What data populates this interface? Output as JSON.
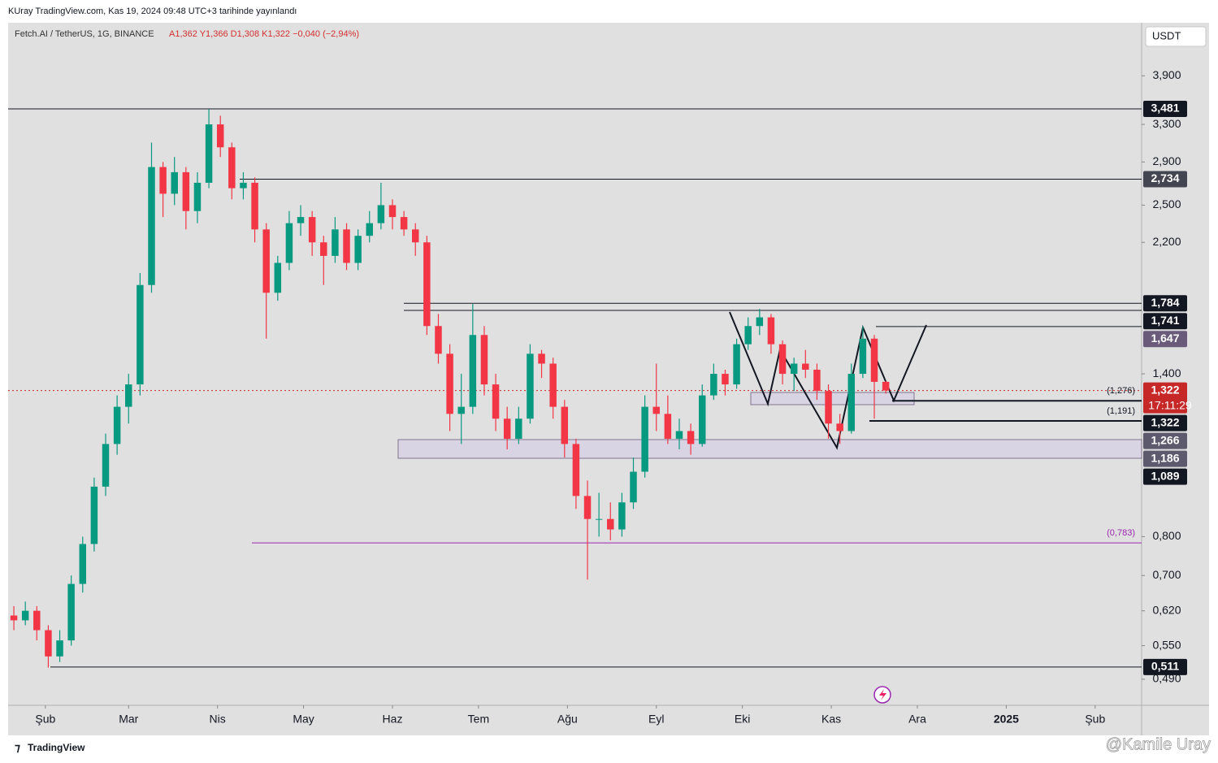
{
  "header": {
    "published": "KUray TradingView.com, Kas 19, 2024 09:48 UTC+3 tarihinde yayınlandı",
    "symbol": "Fetch.AI / TetherUS, 1G, BINANCE",
    "ohlc": "A1,362  Y1,366  D1,308  K1,322  −0,040 (−2,94%)",
    "currency": "USDT"
  },
  "footer": {
    "brand": "TradingView",
    "watermark": "@Kamile Uray"
  },
  "chart_data": {
    "type": "candlestick",
    "log_scale": true,
    "up_color": "#089981",
    "down_color": "#f23645",
    "xlim": [
      0,
      98.8
    ],
    "ylim": [
      0.448,
      4.68
    ],
    "xticks": [
      {
        "value": 3.25,
        "label": "Şub"
      },
      {
        "value": 10.5,
        "label": "Mar"
      },
      {
        "value": 18.25,
        "label": "Nis"
      },
      {
        "value": 25.75,
        "label": "May"
      },
      {
        "value": 33.5,
        "label": "Haz"
      },
      {
        "value": 41,
        "label": "Tem"
      },
      {
        "value": 48.75,
        "label": "Ağu"
      },
      {
        "value": 56.5,
        "label": "Eyl"
      },
      {
        "value": 64,
        "label": "Eki"
      },
      {
        "value": 71.75,
        "label": "Kas"
      },
      {
        "value": 79.25,
        "label": "Ara"
      },
      {
        "value": 87,
        "label": "2025"
      },
      {
        "value": 94.75,
        "label": "Şub"
      }
    ],
    "yticks": [
      {
        "value": 3.9,
        "label": "3,900"
      },
      {
        "value": 3.3,
        "label": "3,300"
      },
      {
        "value": 2.9,
        "label": "2,900"
      },
      {
        "value": 2.5,
        "label": "2,500"
      },
      {
        "value": 2.2,
        "label": "2,200"
      },
      {
        "value": 1.4,
        "label": "1,400"
      },
      {
        "value": 0.8,
        "label": "0,800"
      },
      {
        "value": 0.7,
        "label": "0,700"
      },
      {
        "value": 0.62,
        "label": "0,620"
      },
      {
        "value": 0.55,
        "label": "0,550"
      },
      {
        "value": 0.49,
        "label": "0,490"
      }
    ],
    "candles": [
      [
        0.61,
        0.63,
        0.58,
        0.6
      ],
      [
        0.6,
        0.64,
        0.59,
        0.62
      ],
      [
        0.62,
        0.63,
        0.56,
        0.58
      ],
      [
        0.58,
        0.59,
        0.51,
        0.53
      ],
      [
        0.53,
        0.58,
        0.52,
        0.56
      ],
      [
        0.56,
        0.7,
        0.55,
        0.68
      ],
      [
        0.68,
        0.8,
        0.66,
        0.78
      ],
      [
        0.78,
        0.98,
        0.76,
        0.95
      ],
      [
        0.95,
        1.14,
        0.92,
        1.1
      ],
      [
        1.1,
        1.3,
        1.06,
        1.25
      ],
      [
        1.25,
        1.4,
        1.18,
        1.35
      ],
      [
        1.35,
        1.98,
        1.3,
        1.9
      ],
      [
        1.9,
        3.1,
        1.85,
        2.85
      ],
      [
        2.85,
        2.9,
        2.4,
        2.6
      ],
      [
        2.6,
        2.95,
        2.5,
        2.8
      ],
      [
        2.8,
        2.85,
        2.3,
        2.45
      ],
      [
        2.45,
        2.8,
        2.35,
        2.7
      ],
      [
        2.7,
        3.48,
        2.65,
        3.3
      ],
      [
        3.3,
        3.4,
        2.95,
        3.05
      ],
      [
        3.05,
        3.1,
        2.55,
        2.65
      ],
      [
        2.65,
        2.8,
        2.55,
        2.7
      ],
      [
        2.7,
        2.75,
        2.2,
        2.3
      ],
      [
        2.3,
        2.35,
        1.58,
        1.85
      ],
      [
        1.85,
        2.1,
        1.8,
        2.05
      ],
      [
        2.05,
        2.45,
        2.0,
        2.35
      ],
      [
        2.35,
        2.5,
        2.25,
        2.4
      ],
      [
        2.4,
        2.45,
        2.1,
        2.2
      ],
      [
        2.2,
        2.25,
        1.9,
        2.1
      ],
      [
        2.1,
        2.4,
        2.05,
        2.3
      ],
      [
        2.3,
        2.35,
        2.0,
        2.05
      ],
      [
        2.05,
        2.3,
        2.0,
        2.25
      ],
      [
        2.25,
        2.45,
        2.2,
        2.35
      ],
      [
        2.35,
        2.7,
        2.3,
        2.5
      ],
      [
        2.5,
        2.55,
        2.3,
        2.4
      ],
      [
        2.4,
        2.45,
        2.25,
        2.3
      ],
      [
        2.3,
        2.35,
        2.1,
        2.2
      ],
      [
        2.2,
        2.25,
        1.6,
        1.65
      ],
      [
        1.65,
        1.72,
        1.45,
        1.5
      ],
      [
        1.5,
        1.55,
        1.15,
        1.22
      ],
      [
        1.22,
        1.4,
        1.1,
        1.25
      ],
      [
        1.25,
        1.78,
        1.22,
        1.6
      ],
      [
        1.6,
        1.65,
        1.3,
        1.35
      ],
      [
        1.35,
        1.4,
        1.15,
        1.2
      ],
      [
        1.2,
        1.25,
        1.08,
        1.12
      ],
      [
        1.12,
        1.25,
        1.1,
        1.2
      ],
      [
        1.2,
        1.55,
        1.18,
        1.5
      ],
      [
        1.5,
        1.52,
        1.38,
        1.45
      ],
      [
        1.45,
        1.48,
        1.2,
        1.25
      ],
      [
        1.25,
        1.28,
        1.05,
        1.1
      ],
      [
        1.1,
        1.12,
        0.88,
        0.92
      ],
      [
        0.92,
        0.97,
        0.69,
        0.85
      ],
      [
        0.85,
        0.93,
        0.8,
        0.85
      ],
      [
        0.85,
        0.9,
        0.79,
        0.82
      ],
      [
        0.82,
        0.93,
        0.8,
        0.9
      ],
      [
        0.9,
        1.05,
        0.88,
        1.0
      ],
      [
        1.0,
        1.3,
        0.98,
        1.25
      ],
      [
        1.25,
        1.45,
        1.15,
        1.22
      ],
      [
        1.22,
        1.3,
        1.1,
        1.12
      ],
      [
        1.12,
        1.2,
        1.08,
        1.15
      ],
      [
        1.15,
        1.18,
        1.06,
        1.1
      ],
      [
        1.1,
        1.35,
        1.09,
        1.3
      ],
      [
        1.3,
        1.45,
        1.28,
        1.4
      ],
      [
        1.4,
        1.42,
        1.3,
        1.35
      ],
      [
        1.35,
        1.58,
        1.33,
        1.55
      ],
      [
        1.55,
        1.7,
        1.52,
        1.65
      ],
      [
        1.65,
        1.75,
        1.6,
        1.7
      ],
      [
        1.7,
        1.72,
        1.5,
        1.55
      ],
      [
        1.55,
        1.57,
        1.35,
        1.4
      ],
      [
        1.4,
        1.48,
        1.32,
        1.45
      ],
      [
        1.45,
        1.52,
        1.38,
        1.42
      ],
      [
        1.42,
        1.45,
        1.28,
        1.32
      ],
      [
        1.32,
        1.35,
        1.12,
        1.18
      ],
      [
        1.18,
        1.22,
        1.1,
        1.15
      ],
      [
        1.15,
        1.45,
        1.14,
        1.4
      ],
      [
        1.4,
        1.65,
        1.38,
        1.58
      ],
      [
        1.58,
        1.6,
        1.2,
        1.362
      ],
      [
        1.362,
        1.366,
        1.308,
        1.322
      ]
    ],
    "price_labels": [
      {
        "value": 3.481,
        "label": "3,481",
        "color": "#131722"
      },
      {
        "value": 2.734,
        "label": "2,734",
        "color": "#434651"
      },
      {
        "value": 1.784,
        "label": "1,784",
        "color": "#131722"
      },
      {
        "value": 1.741,
        "label": "1,741",
        "color": "#131722"
      },
      {
        "value": 1.647,
        "label": "1,647",
        "color": "#6b5b7b"
      },
      {
        "value": 1.322,
        "label": "1,322",
        "color": "#c62828",
        "countdown": "17:11:29"
      },
      {
        "value": 1.322,
        "label": "1,322",
        "color": "#131722"
      },
      {
        "value": 1.266,
        "label": "1,266",
        "color": "#5e5a6e"
      },
      {
        "value": 1.186,
        "label": "1,186",
        "color": "#5e5a6e"
      },
      {
        "value": 1.089,
        "label": "1,089",
        "color": "#131722"
      },
      {
        "value": 0.511,
        "label": "0,511",
        "color": "#131722"
      }
    ],
    "level_notes": [
      {
        "value": 1.276,
        "label": "(1,276)",
        "color": "#131722"
      },
      {
        "value": 1.191,
        "label": "(1,191)",
        "color": "#131722"
      },
      {
        "value": 0.783,
        "label": "(0,783)",
        "color": "#9c27b0"
      }
    ]
  }
}
